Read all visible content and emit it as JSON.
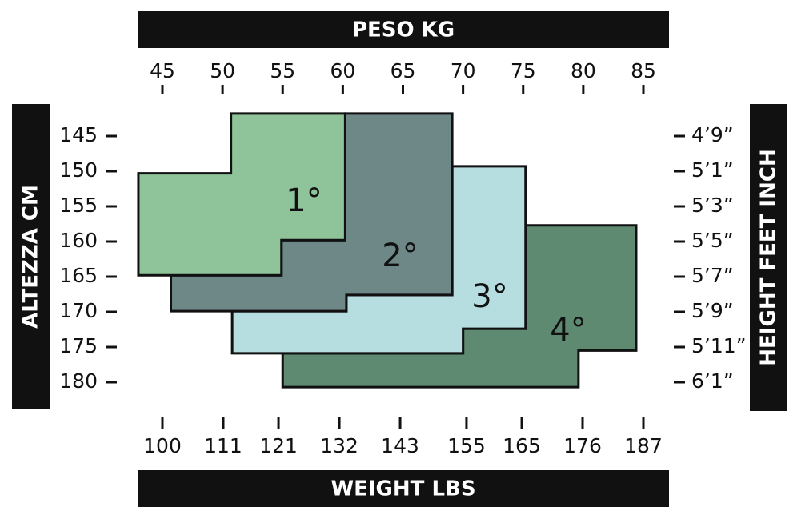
{
  "chart_data": {
    "type": "polygon",
    "x_title": "PESO KG",
    "x2_title": "WEIGHT LBS",
    "y_title": "ALTEZZA CM",
    "y2_title": "HEIGHT FEET INCH",
    "xlim": [
      45,
      85
    ],
    "xticks": [
      45,
      50,
      55,
      60,
      65,
      70,
      75,
      80,
      85
    ],
    "x2lim": [
      100,
      187
    ],
    "x2ticks": [
      100,
      111,
      121,
      132,
      143,
      155,
      165,
      176,
      187
    ],
    "ylim": [
      145,
      180
    ],
    "yticks": [
      145,
      150,
      155,
      160,
      165,
      170,
      175,
      180
    ],
    "y2ticks": [
      "4’9”",
      "5’1”",
      "5’3”",
      "5’5”",
      "5’7”",
      "5’9”",
      "5’11”",
      "6’1”"
    ],
    "regions": [
      {
        "name": "1°",
        "color": "#8fc49a",
        "points": [
          [
            50.7,
            141.8
          ],
          [
            60.2,
            141.8
          ],
          [
            60.2,
            159.8
          ],
          [
            54.9,
            159.8
          ],
          [
            54.9,
            164.8
          ],
          [
            43,
            164.8
          ],
          [
            43,
            150.3
          ],
          [
            50.7,
            150.3
          ]
        ]
      },
      {
        "name": "2°",
        "color": "#6e8787",
        "points": [
          [
            60.2,
            141.8
          ],
          [
            69.1,
            141.8
          ],
          [
            69.1,
            167.6
          ],
          [
            60.3,
            167.6
          ],
          [
            60.3,
            169.9
          ],
          [
            45.7,
            169.9
          ],
          [
            45.7,
            164.8
          ],
          [
            54.9,
            164.8
          ],
          [
            54.9,
            159.8
          ],
          [
            60.2,
            159.8
          ]
        ]
      },
      {
        "name": "3°",
        "color": "#b6dde0",
        "points": [
          [
            69.1,
            149.3
          ],
          [
            75.2,
            149.3
          ],
          [
            75.2,
            172.4
          ],
          [
            70,
            172.4
          ],
          [
            70,
            175.9
          ],
          [
            50.8,
            175.9
          ],
          [
            50.8,
            169.9
          ],
          [
            60.3,
            169.9
          ],
          [
            60.3,
            167.6
          ],
          [
            69.1,
            167.6
          ]
        ]
      },
      {
        "name": "4°",
        "color": "#5f8a72",
        "points": [
          [
            75.2,
            157.7
          ],
          [
            84.4,
            157.7
          ],
          [
            84.4,
            175.5
          ],
          [
            79.6,
            175.5
          ],
          [
            79.6,
            180.7
          ],
          [
            55,
            180.7
          ],
          [
            55,
            175.9
          ],
          [
            70,
            175.9
          ],
          [
            70,
            172.4
          ],
          [
            75.2,
            172.4
          ]
        ]
      }
    ]
  }
}
